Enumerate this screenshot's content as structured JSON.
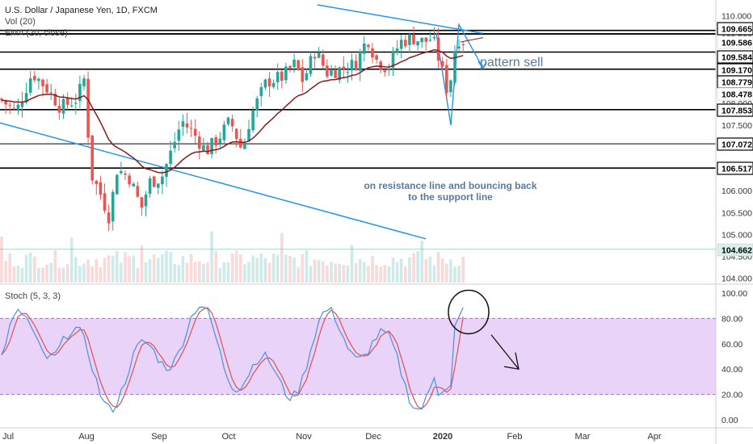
{
  "header": {
    "title": "U.S. Dollar / Japanese Yen, 1D, FXCM",
    "vol_label": "Vol (20)",
    "ema_label": "EMA (20, close)"
  },
  "stoch_label": "Stoch (5, 3, 3)",
  "annotations": {
    "pattern": "pattern sell",
    "note_line1": "on resistance line and bouncing back",
    "note_line2": "to the support line"
  },
  "colors": {
    "up": "#26a69a",
    "down": "#ef5350",
    "ema": "#8b1a1a",
    "trendline": "#2196f3",
    "annotation_text": "#5b7a99",
    "stoch_band": "#e1c4f7",
    "stoch_k": "#4a90e2",
    "stoch_d": "#e0504f",
    "tag_bg": "#ffffff",
    "tag_dark": "#000000",
    "current_tag": "#d7f0ed"
  },
  "chart_data": {
    "type": "candlestick",
    "symbol": "USDJPY",
    "timeframe": "1D",
    "x_labels": [
      "Jul",
      "Aug",
      "Sep",
      "Oct",
      "Nov",
      "Dec",
      "2020",
      "Feb",
      "Mar",
      "Apr"
    ],
    "price_axis": {
      "ylim": [
        103.9,
        110.25
      ],
      "ticks": [
        110.0,
        109.5,
        109.0,
        108.5,
        108.0,
        107.5,
        107.0,
        106.5,
        106.0,
        105.5,
        105.0,
        104.5,
        104.0
      ],
      "tick_labels": [
        "110.000",
        "109.500",
        "109.000",
        "108.500",
        "108.000",
        "107.500",
        "107.000",
        "106.500",
        "106.000",
        "105.500",
        "105.000",
        "104.500",
        "104.000"
      ]
    },
    "horizontal_levels": [
      109.665,
      109.586,
      109.584,
      109.17,
      108.779,
      107.853,
      107.072,
      106.517
    ],
    "level_labels": [
      "109.665",
      "109.586",
      "109.584",
      "109.170",
      "108.779",
      "108.478",
      "107.853",
      "107.072",
      "106.517",
      "104.662"
    ],
    "current_price": 104.662,
    "stochastic": {
      "period": "5, 3, 3",
      "ylim": [
        -5,
        105
      ],
      "ticks": [
        100,
        80,
        60,
        40,
        20,
        0
      ],
      "tick_labels": [
        "100.00",
        "80.00",
        "60.00",
        "40.00",
        "20.00",
        "0.00"
      ],
      "band": [
        20,
        80
      ]
    }
  }
}
